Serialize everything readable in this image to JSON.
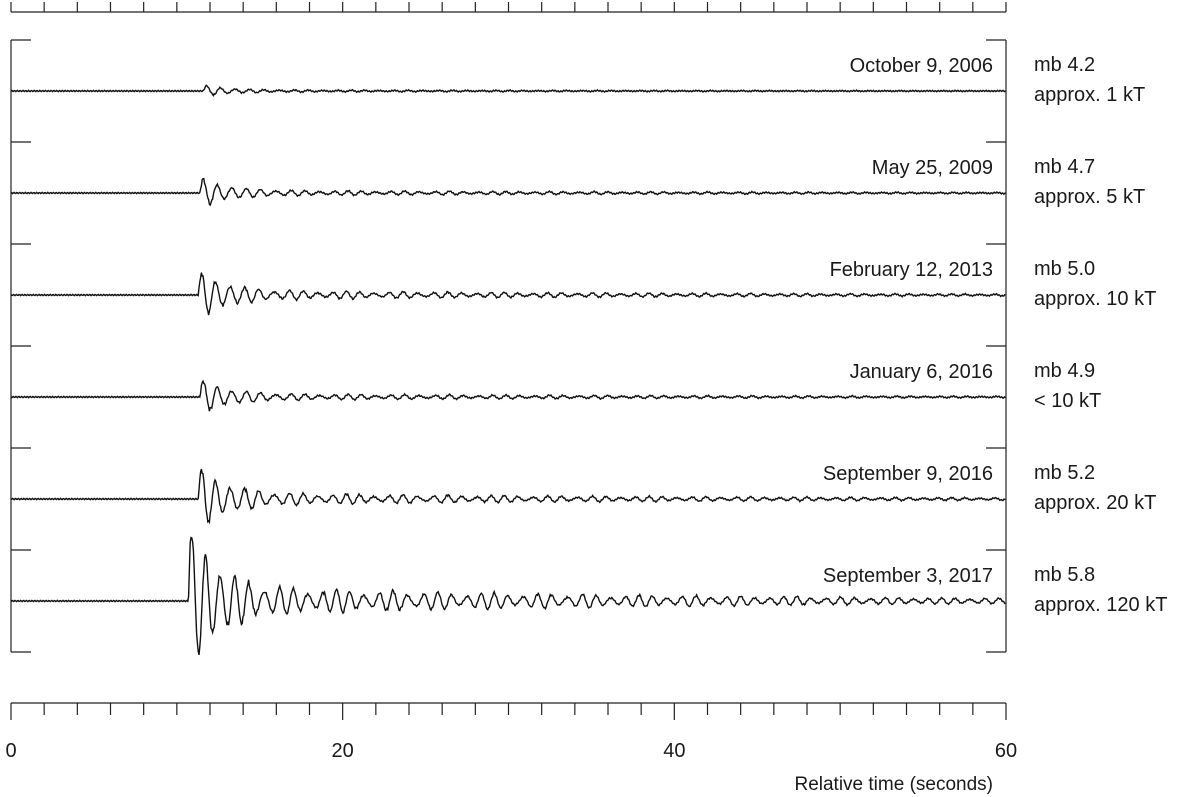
{
  "chart_data": {
    "type": "line",
    "xlabel": "Relative time (seconds)",
    "xlim": [
      0,
      60
    ],
    "x_ticks": [
      0,
      20,
      40,
      60
    ],
    "x_minor_step": 2,
    "grid": false,
    "series": [
      {
        "name": "October 9, 2006",
        "annotation": [
          "mb 4.2",
          "approx. 1 kT"
        ],
        "magnitude": 4.2,
        "onset_s": 11.6,
        "peak_amplitude": 0.1
      },
      {
        "name": "May 25, 2009",
        "annotation": [
          "mb 4.7",
          "approx. 5 kT"
        ],
        "magnitude": 4.7,
        "onset_s": 11.4,
        "peak_amplitude": 0.27
      },
      {
        "name": "February 12, 2013",
        "annotation": [
          "mb 5.0",
          "approx. 10 kT"
        ],
        "magnitude": 5.0,
        "onset_s": 11.3,
        "peak_amplitude": 0.45
      },
      {
        "name": "January 6, 2016",
        "annotation": [
          "mb 4.9",
          "< 10 kT"
        ],
        "magnitude": 4.9,
        "onset_s": 11.4,
        "peak_amplitude": 0.33
      },
      {
        "name": "September 9, 2016",
        "annotation": [
          "mb 5.2",
          "approx. 20 kT"
        ],
        "magnitude": 5.2,
        "onset_s": 11.3,
        "peak_amplitude": 0.6
      },
      {
        "name": "September 3, 2017",
        "annotation": [
          "mb 5.8",
          "approx. 120 kT"
        ],
        "magnitude": 5.8,
        "onset_s": 10.7,
        "peak_amplitude": 1.4
      }
    ]
  }
}
